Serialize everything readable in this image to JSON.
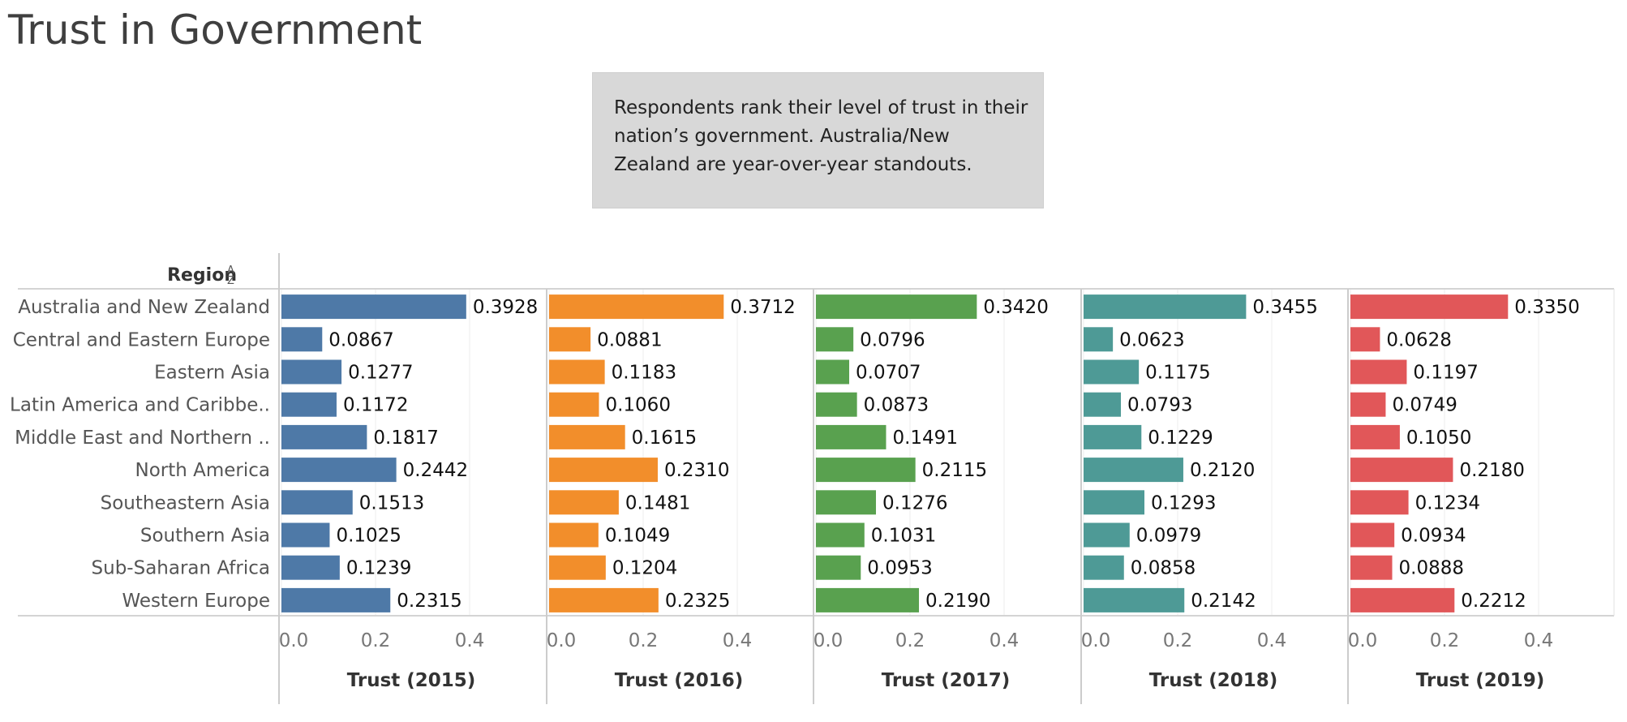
{
  "title": "Trust in Government",
  "note_lines": [
    "Respondents rank their level of trust in their",
    "nation’s government. Australia/New",
    "Zealand are year-over-year standouts."
  ],
  "chart_data": {
    "type": "bar",
    "orientation": "horizontal",
    "row_header": "Region",
    "categories": [
      "Australia and New Zealand",
      "Central and Eastern Europe",
      "Eastern Asia",
      "Latin America and Caribbe..",
      "Middle East and Northern ..",
      "North America",
      "Southeastern Asia",
      "Southern Asia",
      "Sub-Saharan Africa",
      "Western Europe"
    ],
    "xlim": [
      0,
      0.44
    ],
    "ticks": [
      0.0,
      0.2,
      0.4
    ],
    "tick_labels": [
      "0.0",
      "0.2",
      "0.4"
    ],
    "grid": true,
    "series": [
      {
        "label": "Trust (2015)",
        "color": "#4e79a7",
        "values": [
          0.3928,
          0.0867,
          0.1277,
          0.1172,
          0.1817,
          0.2442,
          0.1513,
          0.1025,
          0.1239,
          0.2315
        ],
        "value_labels": [
          "0.3928",
          "0.0867",
          "0.1277",
          "0.1172",
          "0.1817",
          "0.2442",
          "0.1513",
          "0.1025",
          "0.1239",
          "0.2315"
        ]
      },
      {
        "label": "Trust (2016)",
        "color": "#f28e2b",
        "values": [
          0.3712,
          0.0881,
          0.1183,
          0.106,
          0.1615,
          0.231,
          0.1481,
          0.1049,
          0.1204,
          0.2325
        ],
        "value_labels": [
          "0.3712",
          "0.0881",
          "0.1183",
          "0.1060",
          "0.1615",
          "0.2310",
          "0.1481",
          "0.1049",
          "0.1204",
          "0.2325"
        ]
      },
      {
        "label": "Trust (2017)",
        "color": "#59a14f",
        "values": [
          0.342,
          0.0796,
          0.0707,
          0.0873,
          0.1491,
          0.2115,
          0.1276,
          0.1031,
          0.0953,
          0.219
        ],
        "value_labels": [
          "0.3420",
          "0.0796",
          "0.0707",
          "0.0873",
          "0.1491",
          "0.2115",
          "0.1276",
          "0.1031",
          "0.0953",
          "0.2190"
        ]
      },
      {
        "label": "Trust (2018)",
        "color": "#4e9a96",
        "values": [
          0.3455,
          0.0623,
          0.1175,
          0.0793,
          0.1229,
          0.212,
          0.1293,
          0.0979,
          0.0858,
          0.2142
        ],
        "value_labels": [
          "0.3455",
          "0.0623",
          "0.1175",
          "0.0793",
          "0.1229",
          "0.2120",
          "0.1293",
          "0.0979",
          "0.0858",
          "0.2142"
        ]
      },
      {
        "label": "Trust (2019)",
        "color": "#e15759",
        "values": [
          0.335,
          0.0628,
          0.1197,
          0.0749,
          0.105,
          0.218,
          0.1234,
          0.0934,
          0.0888,
          0.2212
        ],
        "value_labels": [
          "0.3350",
          "0.0628",
          "0.1197",
          "0.0749",
          "0.1050",
          "0.2180",
          "0.1234",
          "0.0934",
          "0.0888",
          "0.2212"
        ]
      }
    ]
  }
}
